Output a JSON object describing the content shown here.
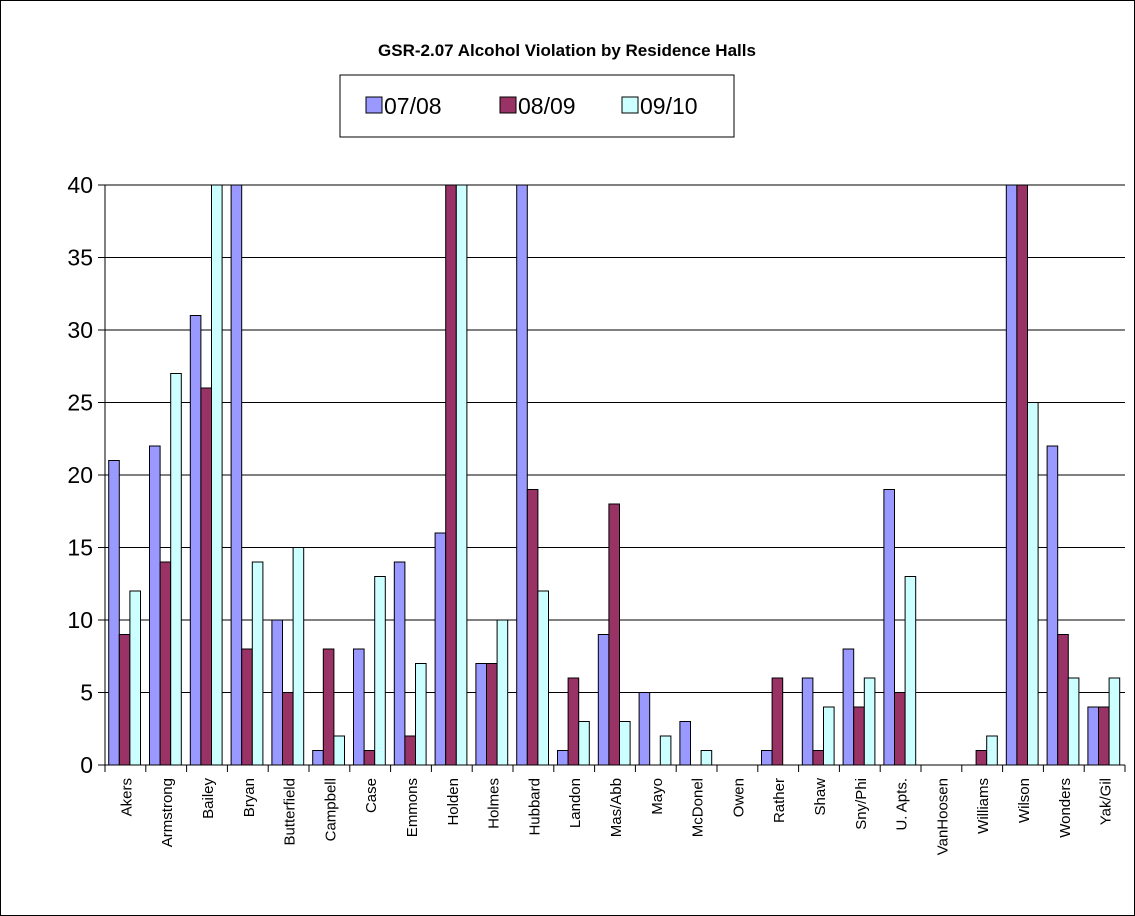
{
  "chart_data": {
    "type": "bar",
    "title": "GSR-2.07 Alcohol Violation by Residence Halls",
    "xlabel": "",
    "ylabel": "",
    "ylim": [
      0,
      40
    ],
    "yticks": [
      0,
      5,
      10,
      15,
      20,
      25,
      30,
      35,
      40
    ],
    "grid": true,
    "legend_position": "top",
    "categories": [
      "Akers",
      "Armstrong",
      "Bailey",
      "Bryan",
      "Butterfield",
      "Campbell",
      "Case",
      "Emmons",
      "Holden",
      "Holmes",
      "Hubbard",
      "Landon",
      "Mas/Abb",
      "Mayo",
      "McDonel",
      "Owen",
      "Rather",
      "Shaw",
      "Sny/Phi",
      "U. Apts.",
      "VanHoosen",
      "Williams",
      "Wilson",
      "Wonders",
      "Yak/Gil"
    ],
    "series": [
      {
        "name": "07/08",
        "color": "#9999ff",
        "values": [
          21,
          22,
          31,
          40,
          10,
          1,
          8,
          14,
          16,
          7,
          40,
          1,
          9,
          5,
          3,
          0,
          1,
          6,
          8,
          19,
          0,
          0,
          40,
          22,
          4
        ]
      },
      {
        "name": "08/09",
        "color": "#993366",
        "values": [
          9,
          14,
          26,
          8,
          5,
          8,
          1,
          2,
          40,
          7,
          19,
          6,
          18,
          0,
          0,
          0,
          6,
          1,
          4,
          5,
          0,
          1,
          40,
          9,
          4
        ]
      },
      {
        "name": "09/10",
        "color": "#ccffff",
        "values": [
          12,
          27,
          40,
          14,
          15,
          2,
          13,
          7,
          40,
          10,
          12,
          3,
          3,
          2,
          1,
          0,
          0,
          4,
          6,
          13,
          0,
          2,
          25,
          6,
          6
        ]
      }
    ]
  }
}
